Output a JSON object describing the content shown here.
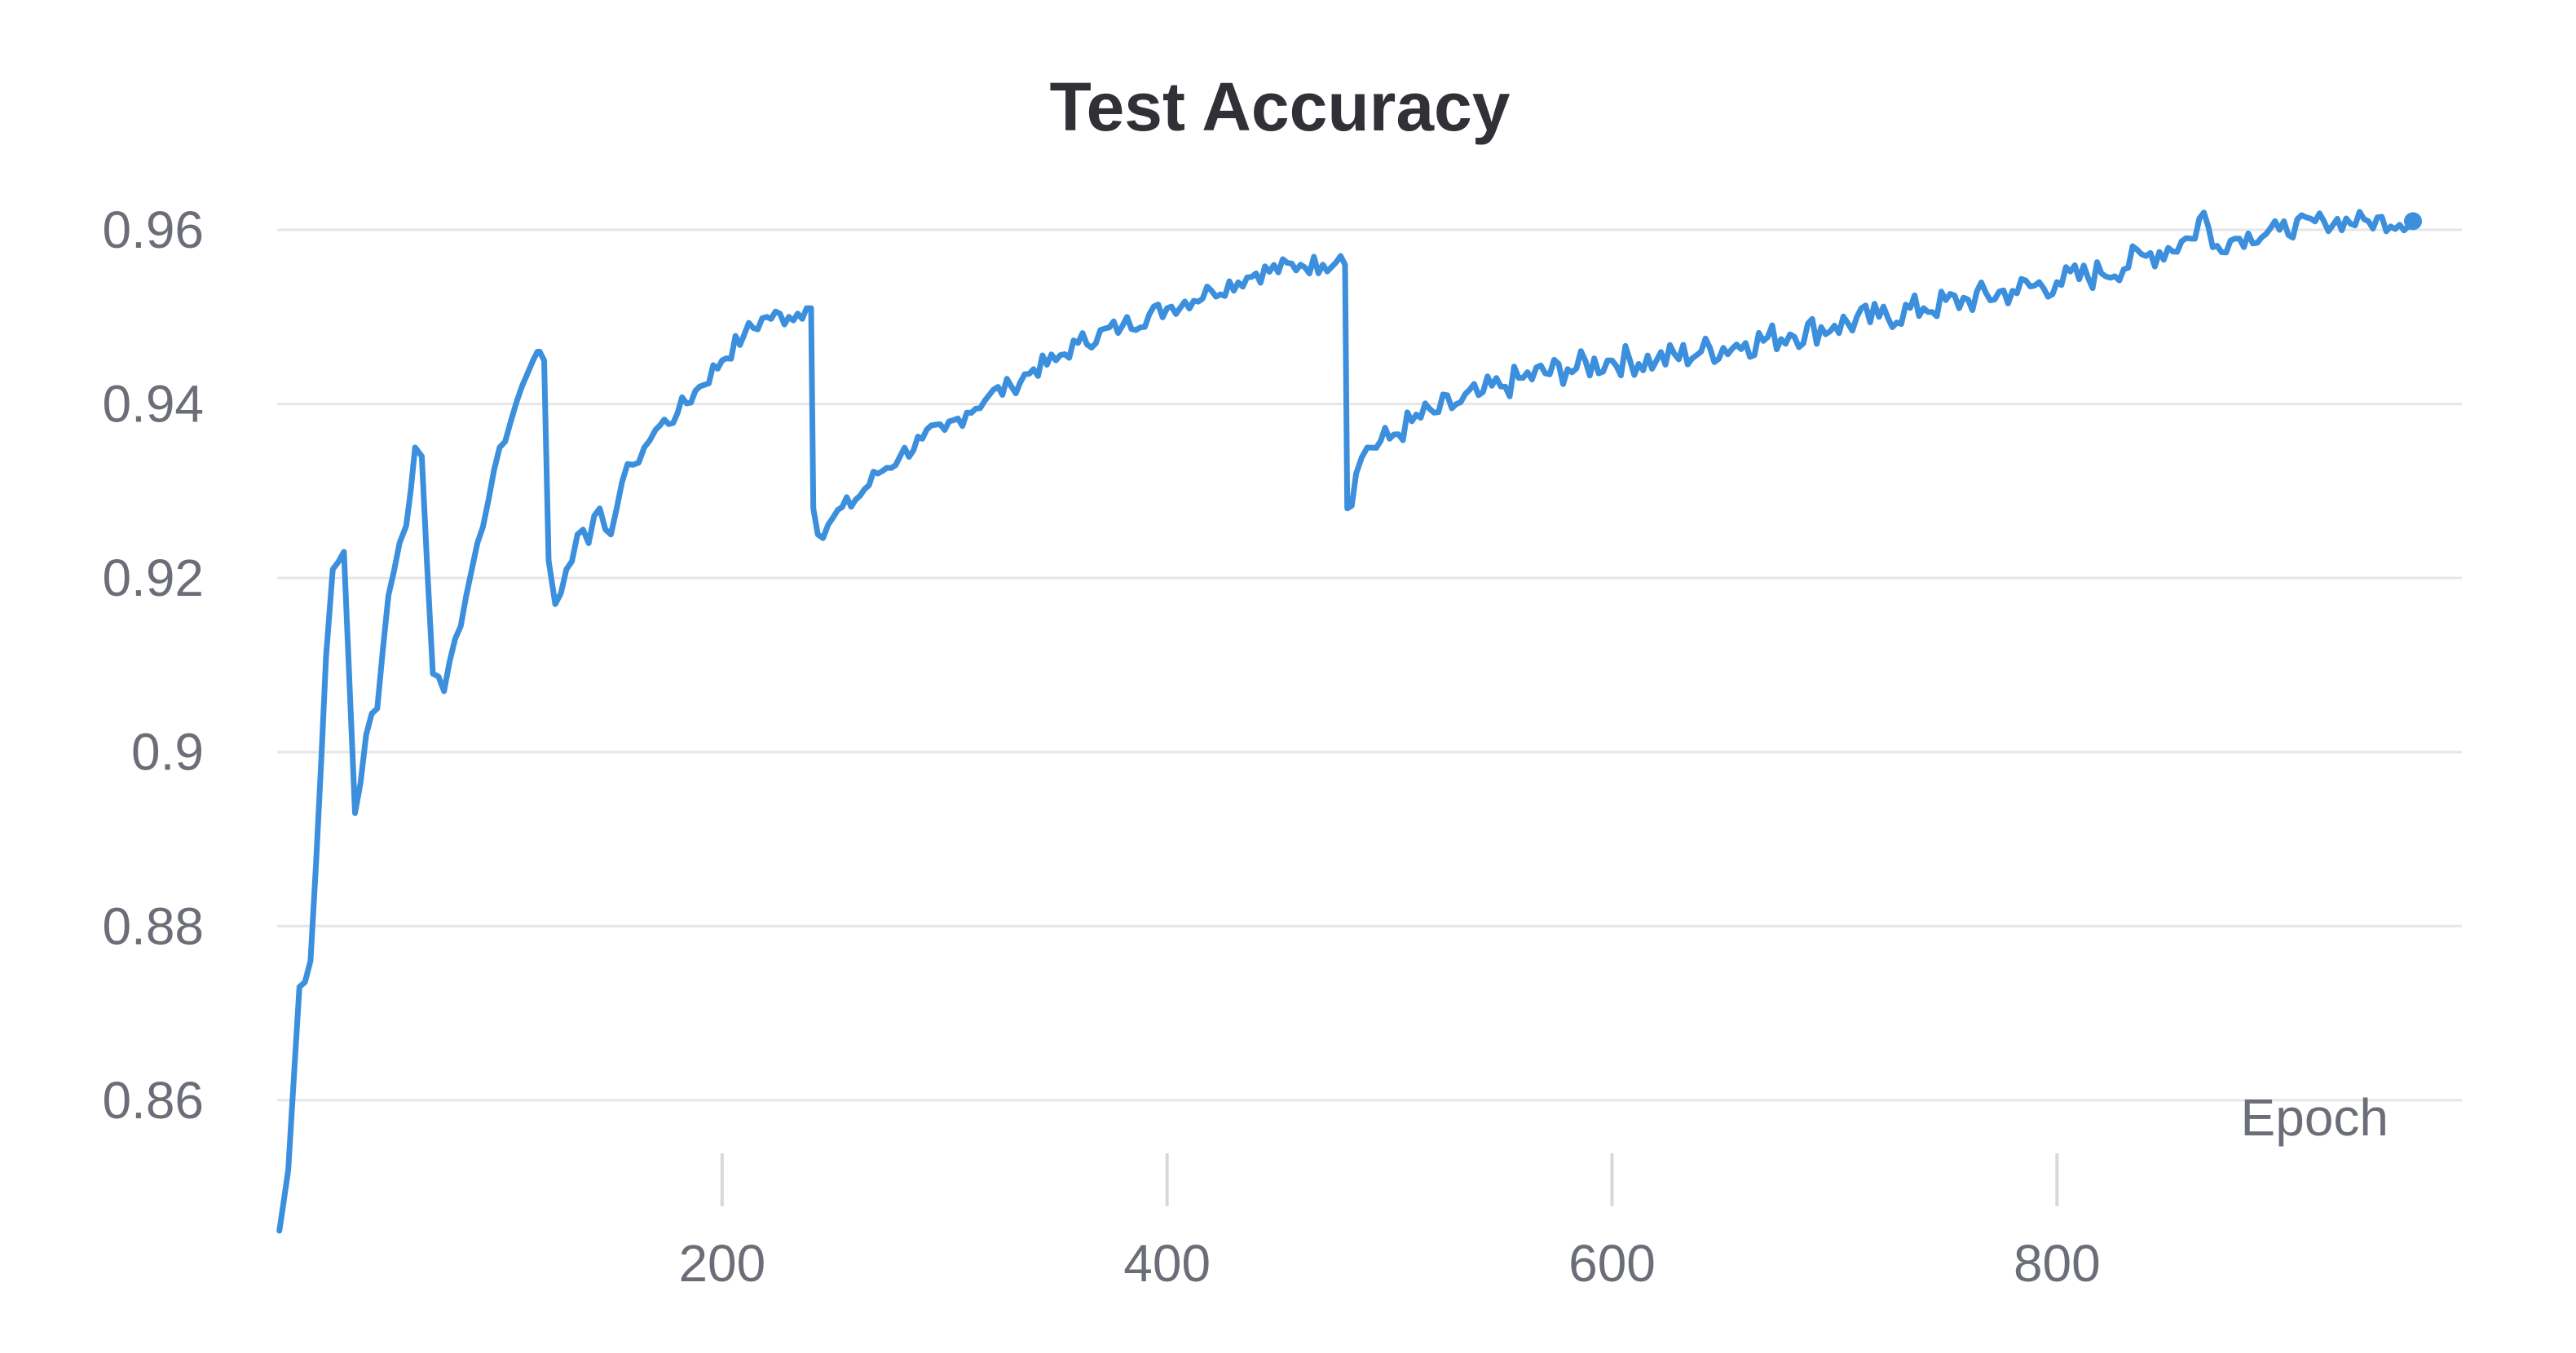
{
  "chart_data": {
    "type": "line",
    "title": "Test Accuracy",
    "xlabel": "Epoch",
    "ylabel": "",
    "xlim": [
      0,
      960
    ],
    "ylim": [
      0.845,
      0.963
    ],
    "xticks": [
      200,
      400,
      600,
      800
    ],
    "xtick_labels": [
      "200",
      "400",
      "600",
      "800"
    ],
    "yticks": [
      0.86,
      0.88,
      0.9,
      0.92,
      0.94,
      0.96
    ],
    "ytick_labels": [
      "0.86",
      "0.88",
      "0.9",
      "0.92",
      "0.94",
      "0.96"
    ],
    "grid": true,
    "legend": "none",
    "color": "#3b8fdc",
    "series": [
      {
        "x": [
          1,
          5,
          10,
          15,
          20,
          22,
          25,
          30,
          35,
          40,
          45,
          50,
          55,
          58,
          60,
          62,
          65,
          70,
          75,
          80,
          85,
          90,
          95,
          100,
          105,
          110,
          115,
          117,
          118,
          120,
          122,
          125,
          130,
          135,
          140,
          145,
          150,
          155,
          160,
          165,
          170,
          180,
          190,
          200,
          210,
          220,
          230,
          238,
          240,
          241,
          243,
          250,
          260,
          270,
          280,
          290,
          300,
          310,
          320,
          330,
          340,
          350,
          360,
          380,
          400,
          420,
          440,
          460,
          470,
          478,
          480,
          481,
          485,
          490,
          500,
          510,
          520,
          530,
          540,
          550,
          560,
          580,
          600,
          620,
          640,
          660,
          680,
          700,
          720,
          740,
          760,
          780,
          800,
          820,
          840,
          860,
          866,
          870,
          880,
          900,
          920,
          940,
          960
        ],
        "y": [
          0.845,
          0.852,
          0.873,
          0.876,
          0.9,
          0.911,
          0.921,
          0.923,
          0.893,
          0.902,
          0.905,
          0.918,
          0.924,
          0.926,
          0.93,
          0.935,
          0.934,
          0.909,
          0.907,
          0.913,
          0.918,
          0.924,
          0.929,
          0.935,
          0.938,
          0.942,
          0.945,
          0.946,
          0.946,
          0.945,
          0.922,
          0.917,
          0.921,
          0.925,
          0.924,
          0.928,
          0.925,
          0.931,
          0.933,
          0.935,
          0.937,
          0.939,
          0.942,
          0.945,
          0.948,
          0.95,
          0.95,
          0.951,
          0.951,
          0.928,
          0.925,
          0.927,
          0.929,
          0.932,
          0.934,
          0.936,
          0.937,
          0.939,
          0.941,
          0.942,
          0.944,
          0.945,
          0.947,
          0.949,
          0.951,
          0.953,
          0.955,
          0.956,
          0.956,
          0.957,
          0.956,
          0.928,
          0.932,
          0.935,
          0.936,
          0.938,
          0.939,
          0.94,
          0.941,
          0.942,
          0.943,
          0.944,
          0.945,
          0.945,
          0.946,
          0.947,
          0.948,
          0.949,
          0.95,
          0.951,
          0.952,
          0.953,
          0.954,
          0.955,
          0.957,
          0.959,
          0.962,
          0.958,
          0.959,
          0.96,
          0.961,
          0.961,
          0.961
        ]
      }
    ]
  }
}
